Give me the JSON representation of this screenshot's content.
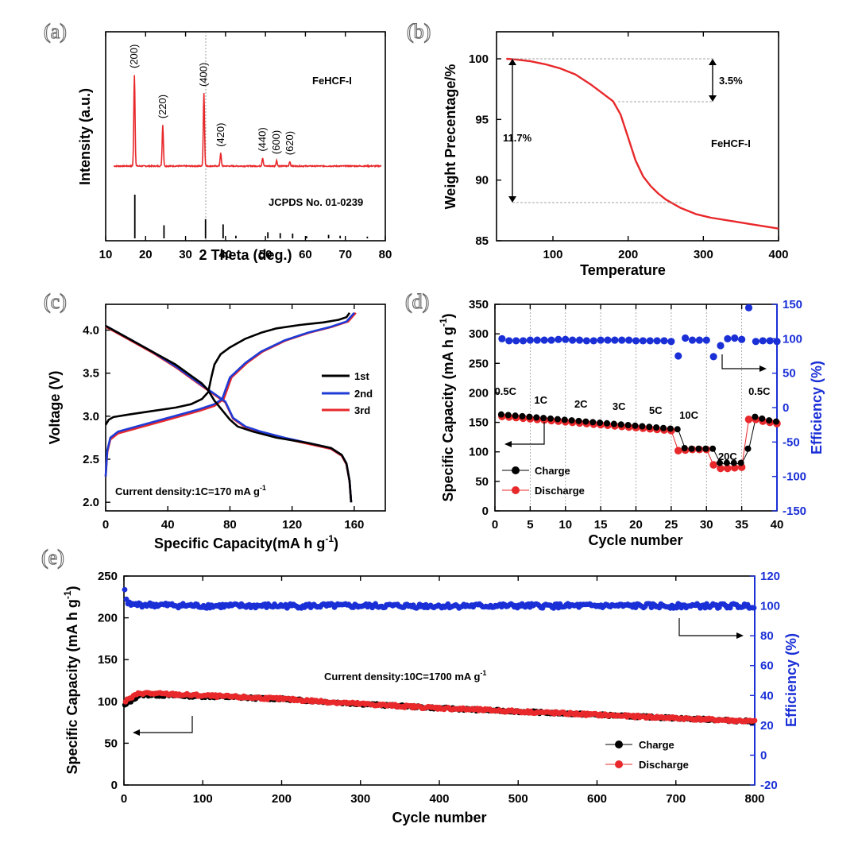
{
  "chart_data": [
    {
      "panel": "(a)",
      "type": "line",
      "xlabel": "2 Theta (deg.)",
      "ylabel": "Intensity (a.u.)",
      "xlim": [
        10,
        80
      ],
      "xticks": [
        10,
        20,
        30,
        40,
        50,
        60,
        70,
        80
      ],
      "series": [
        {
          "name": "FeHCF-I",
          "color": "#e8282b",
          "peaks": [
            {
              "x": 17.2,
              "h": 1.0,
              "label": "(200)"
            },
            {
              "x": 24.3,
              "h": 0.45,
              "label": "(220)"
            },
            {
              "x": 34.6,
              "h": 0.8,
              "label": "(400)"
            },
            {
              "x": 38.8,
              "h": 0.14,
              "label": "(420)"
            },
            {
              "x": 49.3,
              "h": 0.09,
              "label": "(440)"
            },
            {
              "x": 52.8,
              "h": 0.06,
              "label": "(600)"
            },
            {
              "x": 56.1,
              "h": 0.05,
              "label": "(620)"
            }
          ]
        },
        {
          "name": "JCPDS No. 01-0239",
          "color": "#000000",
          "sticks": [
            {
              "x": 17.3,
              "h": 1.0
            },
            {
              "x": 24.6,
              "h": 0.3
            },
            {
              "x": 35.0,
              "h": 0.44
            },
            {
              "x": 39.4,
              "h": 0.32
            },
            {
              "x": 42.6,
              "h": 0.06
            },
            {
              "x": 50.6,
              "h": 0.14
            },
            {
              "x": 53.7,
              "h": 0.12
            },
            {
              "x": 56.8,
              "h": 0.11
            },
            {
              "x": 60.3,
              "h": 0.05
            },
            {
              "x": 65.8,
              "h": 0.08
            },
            {
              "x": 68.7,
              "h": 0.06
            },
            {
              "x": 75.5,
              "h": 0.04
            }
          ]
        }
      ]
    },
    {
      "panel": "(b)",
      "type": "line",
      "xlabel": "Temperature",
      "ylabel": "Weight Precentage/%",
      "xlim": [
        25,
        400
      ],
      "ylim": [
        85,
        101
      ],
      "xticks": [
        100,
        200,
        300,
        400
      ],
      "yticks": [
        85,
        90,
        95,
        100
      ],
      "series": [
        {
          "name": "FeHCF-I",
          "color": "#e8282b",
          "x": [
            38,
            50,
            70,
            90,
            110,
            130,
            150,
            165,
            180,
            190,
            200,
            210,
            220,
            230,
            240,
            250,
            270,
            290,
            310,
            340,
            370,
            400
          ],
          "y": [
            100,
            99.95,
            99.8,
            99.55,
            99.2,
            98.7,
            97.9,
            97.2,
            96.5,
            95.4,
            93.5,
            91.6,
            90.3,
            89.5,
            88.9,
            88.4,
            87.7,
            87.2,
            86.9,
            86.6,
            86.3,
            86.0
          ]
        }
      ],
      "annotations": [
        "3.5%",
        "11.7%",
        "FeHCF-I"
      ]
    },
    {
      "panel": "(c)",
      "type": "line",
      "xlabel": "Specific Capacity(mA h g⁻¹)",
      "ylabel": "Voltage (V)",
      "xlim": [
        0,
        180
      ],
      "ylim": [
        1.9,
        4.3
      ],
      "xticks": [
        0,
        40,
        80,
        120,
        160
      ],
      "yticks": [
        2.0,
        2.5,
        3.0,
        3.5,
        4.0
      ],
      "annotation": "Current density:1C=170 mA g⁻¹",
      "series": [
        {
          "name": "1st",
          "color": "#000000",
          "charge": {
            "x": [
              0,
              2,
              5,
              15,
              30,
              45,
              55,
              62,
              66,
              68,
              70,
              74,
              80,
              90,
              100,
              110,
              125,
              140,
              150,
              155,
              157
            ],
            "y": [
              2.9,
              2.96,
              2.99,
              3.02,
              3.06,
              3.1,
              3.14,
              3.2,
              3.28,
              3.45,
              3.6,
              3.72,
              3.8,
              3.9,
              3.97,
              4.02,
              4.06,
              4.09,
              4.12,
              4.15,
              4.2
            ]
          },
          "discharge": {
            "x": [
              0,
              5,
              15,
              30,
              45,
              55,
              62,
              66,
              70,
              75,
              80,
              85,
              95,
              110,
              130,
              145,
              152,
              155,
              157,
              158
            ],
            "y": [
              4.05,
              4.0,
              3.9,
              3.75,
              3.6,
              3.47,
              3.38,
              3.3,
              3.18,
              3.07,
              2.96,
              2.88,
              2.82,
              2.75,
              2.69,
              2.63,
              2.55,
              2.45,
              2.25,
              2.0
            ]
          }
        },
        {
          "name": "2nd",
          "color": "#1f3bd6",
          "charge": {
            "x": [
              0,
              1,
              3,
              8,
              20,
              40,
              60,
              70,
              75,
              80,
              90,
              100,
              115,
              130,
              145,
              155,
              160
            ],
            "y": [
              2.3,
              2.6,
              2.75,
              2.82,
              2.88,
              2.98,
              3.08,
              3.14,
              3.2,
              3.45,
              3.62,
              3.75,
              3.88,
              3.97,
              4.04,
              4.1,
              4.2
            ]
          },
          "discharge": {
            "x": [
              0,
              5,
              15,
              30,
              45,
              55,
              62,
              70,
              77,
              82,
              90,
              100,
              115,
              130,
              145,
              152,
              155,
              157,
              158
            ],
            "y": [
              4.05,
              4.0,
              3.9,
              3.75,
              3.58,
              3.45,
              3.36,
              3.26,
              3.17,
              2.98,
              2.88,
              2.82,
              2.75,
              2.69,
              2.63,
              2.55,
              2.45,
              2.25,
              2.0
            ]
          }
        },
        {
          "name": "3rd",
          "color": "#e8282b",
          "charge": {
            "x": [
              0,
              1,
              3,
              8,
              20,
              40,
              60,
              70,
              76,
              81,
              91,
              101,
              116,
              131,
              146,
              156,
              161
            ],
            "y": [
              2.3,
              2.58,
              2.73,
              2.8,
              2.86,
              2.96,
              3.06,
              3.12,
              3.2,
              3.45,
              3.62,
              3.75,
              3.88,
              3.97,
              4.04,
              4.1,
              4.2
            ]
          },
          "discharge": {
            "x": [
              0,
              5,
              15,
              30,
              45,
              55,
              62,
              70,
              77,
              82,
              90,
              100,
              115,
              130,
              145,
              152,
              155,
              157,
              158
            ],
            "y": [
              4.04,
              3.99,
              3.89,
              3.74,
              3.57,
              3.44,
              3.35,
              3.25,
              3.16,
              2.97,
              2.87,
              2.81,
              2.74,
              2.68,
              2.62,
              2.54,
              2.44,
              2.24,
              2.0
            ]
          }
        }
      ]
    },
    {
      "panel": "(d)",
      "type": "scatter",
      "xlabel": "Cycle number",
      "ylabel": "Specific Capacity (mA h g⁻¹)",
      "y2label": "Efficiency (%)",
      "xlim": [
        0,
        40
      ],
      "ylim": [
        0,
        350
      ],
      "y2lim": [
        -150,
        150
      ],
      "xticks": [
        0,
        5,
        10,
        15,
        20,
        25,
        30,
        35,
        40
      ],
      "yticks": [
        0,
        50,
        100,
        150,
        200,
        250,
        300,
        350
      ],
      "y2ticks": [
        -150,
        -100,
        -50,
        0,
        50,
        100,
        150
      ],
      "rate_labels": [
        "0.5C",
        "1C",
        "2C",
        "3C",
        "5C",
        "10C",
        "20C",
        "0.5C"
      ],
      "series": [
        {
          "name": "Charge",
          "color": "#000000",
          "x": [
            1,
            2,
            3,
            4,
            5,
            6,
            7,
            8,
            9,
            10,
            11,
            12,
            13,
            14,
            15,
            16,
            17,
            18,
            19,
            20,
            21,
            22,
            23,
            24,
            25,
            26,
            27,
            28,
            29,
            30,
            31,
            32,
            33,
            34,
            35,
            36,
            37,
            38,
            39,
            40
          ],
          "y": [
            162,
            161,
            160,
            159,
            158,
            157,
            156,
            155,
            154,
            153,
            152,
            151,
            150,
            149,
            148,
            147,
            146,
            145,
            144,
            143,
            142,
            141,
            140,
            139,
            138,
            137,
            105,
            104,
            104,
            104,
            104,
            80,
            80,
            80,
            80,
            104,
            158,
            155,
            152,
            150
          ]
        },
        {
          "name": "Discharge",
          "color": "#e8282b",
          "x": [
            1,
            2,
            3,
            4,
            5,
            6,
            7,
            8,
            9,
            10,
            11,
            12,
            13,
            14,
            15,
            16,
            17,
            18,
            19,
            20,
            21,
            22,
            23,
            24,
            25,
            26,
            27,
            28,
            29,
            30,
            31,
            32,
            33,
            34,
            35,
            36,
            37,
            38,
            39,
            40
          ],
          "y": [
            160,
            159,
            158,
            157,
            156,
            155,
            154,
            153,
            152,
            151,
            150,
            149,
            148,
            147,
            146,
            145,
            144,
            143,
            142,
            141,
            140,
            139,
            138,
            137,
            136,
            102,
            103,
            104,
            104,
            104,
            78,
            72,
            72,
            73,
            74,
            155,
            155,
            152,
            150,
            148
          ]
        },
        {
          "name": "Efficiency",
          "color": "#1a2fd6",
          "axis": "right",
          "x": [
            1,
            2,
            3,
            4,
            5,
            6,
            7,
            8,
            9,
            10,
            11,
            12,
            13,
            14,
            15,
            16,
            17,
            18,
            19,
            20,
            21,
            22,
            23,
            24,
            25,
            26,
            27,
            28,
            29,
            30,
            31,
            32,
            33,
            34,
            35,
            36,
            37,
            38,
            39,
            40
          ],
          "y": [
            100,
            97,
            97,
            97,
            98,
            98,
            98,
            98,
            99,
            99,
            98,
            98,
            97,
            97,
            98,
            98,
            98,
            98,
            98,
            97,
            97,
            97,
            97,
            97,
            96,
            75,
            101,
            98,
            98,
            98,
            74,
            90,
            100,
            101,
            99,
            145,
            96,
            97,
            97,
            96
          ]
        }
      ]
    },
    {
      "panel": "(e)",
      "type": "scatter",
      "xlabel": "Cycle number",
      "ylabel": "Specific Capacity (mA h g⁻¹)",
      "y2label": "Efficiency (%)",
      "xlim": [
        0,
        800
      ],
      "ylim": [
        0,
        250
      ],
      "y2lim": [
        -20,
        120
      ],
      "xticks": [
        0,
        100,
        200,
        300,
        400,
        500,
        600,
        700,
        800
      ],
      "yticks": [
        0,
        50,
        100,
        150,
        200,
        250
      ],
      "y2ticks": [
        -20,
        0,
        20,
        40,
        60,
        80,
        100,
        120
      ],
      "annotation": "Current density:10C=1700 mA g⁻¹",
      "series": [
        {
          "name": "Charge",
          "color": "#000000",
          "x": [
            1,
            20,
            100,
            200,
            300,
            400,
            500,
            600,
            700,
            800
          ],
          "y": [
            95,
            108,
            106,
            103,
            97,
            92,
            88,
            84,
            80,
            76
          ]
        },
        {
          "name": "Discharge",
          "color": "#e8282b",
          "x": [
            1,
            20,
            100,
            200,
            300,
            400,
            500,
            600,
            700,
            800
          ],
          "y": [
            100,
            110,
            107,
            103,
            97,
            92,
            88,
            84,
            80,
            76
          ]
        },
        {
          "name": "Efficiency",
          "color": "#1a2fd6",
          "axis": "right",
          "x": [
            1,
            5,
            100,
            200,
            300,
            400,
            500,
            600,
            700,
            800
          ],
          "y": [
            110,
            101,
            100,
            100,
            100,
            100,
            100,
            100,
            100,
            100
          ]
        }
      ]
    }
  ],
  "text": {
    "a_label": "(a)",
    "b_label": "(b)",
    "c_label": "(c)",
    "d_label": "(d)",
    "e_label": "(e)",
    "a_sample": "FeHCF-I",
    "a_ref": "JCPDS No. 01-0239",
    "a_xlabel": "2 Theta (deg.)",
    "a_ylabel": "Intensity (a.u.)",
    "b_xlabel": "Temperature",
    "b_ylabel": "Weight Precentage/%",
    "b_ann1": "3.5%",
    "b_ann2": "11.7%",
    "b_ann3": "FeHCF-I",
    "c_xlabel_main": "Specific Capacity(mA h g",
    "c_xlabel_sup": "-1",
    "c_xlabel_end": ")",
    "c_ylabel": "Voltage (V)",
    "c_ann_main": "Current density:1C=170 mA g",
    "c_ann_sup": "-1",
    "c_leg1": "1st",
    "c_leg2": "2nd",
    "c_leg3": "3rd",
    "d_xlabel": "Cycle number",
    "d_ylabel_main": "Specific Capacity (mA h g",
    "d_ylabel_sup": "-1",
    "d_ylabel_end": ")",
    "d_y2label": "Efficiency (%)",
    "d_leg1": "Charge",
    "d_leg2": "Discharge",
    "e_xlabel": "Cycle number",
    "e_ylabel_main": "Specific Capacity (mA h g",
    "e_ylabel_sup": "-1",
    "e_ylabel_end": ")",
    "e_y2label": "Efficiency (%)",
    "e_ann_main": "Current density:10C=1700 mA g",
    "e_ann_sup": "-1",
    "e_leg1": "Charge",
    "e_leg2": "Discharge"
  }
}
